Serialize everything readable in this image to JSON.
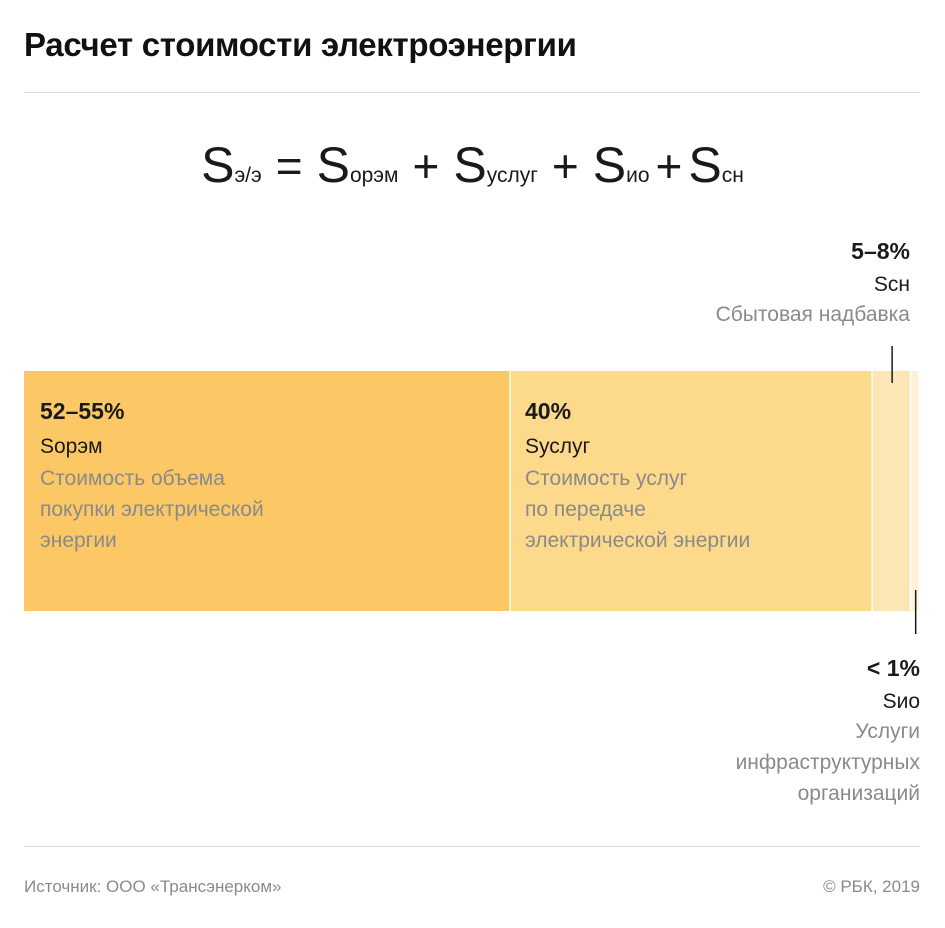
{
  "title": "Расчет стоимости электроэнергии",
  "formula": {
    "terms": [
      {
        "symbol": "S",
        "sub": "э/э"
      },
      {
        "symbol": "S",
        "sub": "орэм"
      },
      {
        "symbol": "S",
        "sub": "услуг"
      },
      {
        "symbol": "S",
        "sub": "ио"
      },
      {
        "symbol": "S",
        "sub": "сн"
      }
    ],
    "equals": "=",
    "plus": "+"
  },
  "chart_data": {
    "type": "bar",
    "orientation": "horizontal-stacked",
    "segments": [
      {
        "label": "52–55%",
        "value_range": [
          52,
          55
        ],
        "symbol": "Sорэм",
        "description": [
          "Стоимость объема",
          "покупки электрической",
          "энергии"
        ],
        "color": "#fcc865"
      },
      {
        "label": "40%",
        "value": 40,
        "symbol": "Sуслуг",
        "description": [
          "Стоимость услуг",
          "по передаче",
          "электрической энергии"
        ],
        "color": "#fdd98c"
      },
      {
        "label": "5–8%",
        "value_range": [
          5,
          8
        ],
        "symbol": "Sсн",
        "description": [
          "Сбытовая надбавка"
        ],
        "color": "#fde6b5"
      },
      {
        "label": "< 1%",
        "value": 1,
        "symbol": "Sио",
        "description": [
          "Услуги",
          "инфраструктурных",
          "организаций"
        ],
        "color": "#fff0d6"
      }
    ]
  },
  "footer": {
    "source": "Источник: ООО «Трансэнерком»",
    "copyright": "© РБК, 2019"
  }
}
